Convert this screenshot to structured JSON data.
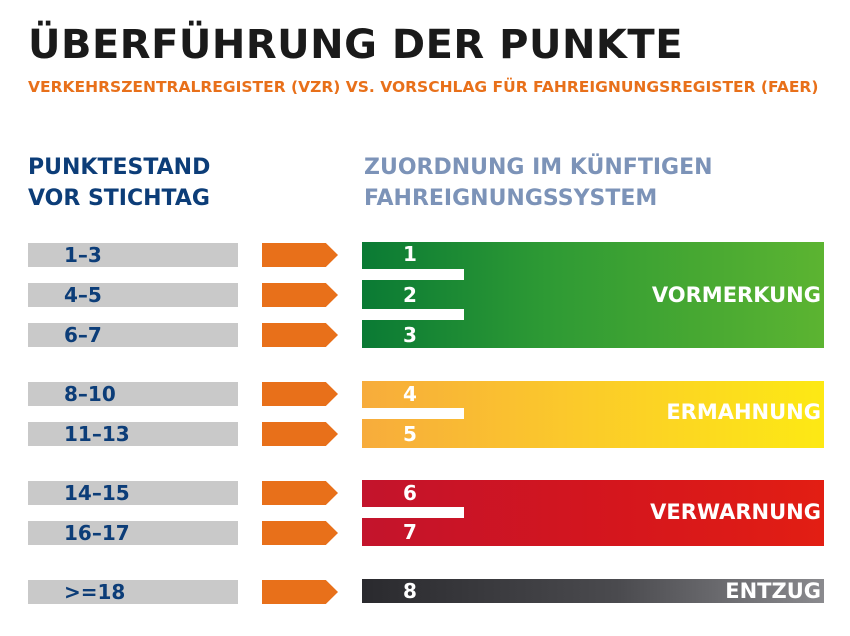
{
  "header": {
    "title": "ÜBERFÜHRUNG DER PUNKTE",
    "subtitle": "VERKEHRSZENTRALREGISTER (VZR) VS. VORSCHLAG FÜR FAHREIGNUNGSREGISTER (FAER)"
  },
  "columns": {
    "left_line1": "PUNKTESTAND",
    "left_line2": "VOR STICHTAG",
    "right_line1": "ZUORDNUNG IM KÜNFTIGEN",
    "right_line2": "FAHREIGNUNGSSYSTEM"
  },
  "rows": [
    {
      "range": "1–3",
      "points": "1"
    },
    {
      "range": "4–5",
      "points": "2"
    },
    {
      "range": "6–7",
      "points": "3"
    },
    {
      "range": "8–10",
      "points": "4"
    },
    {
      "range": "11–13",
      "points": "5"
    },
    {
      "range": "14–15",
      "points": "6"
    },
    {
      "range": "16–17",
      "points": "7"
    },
    {
      "range": ">=18",
      "points": "8"
    }
  ],
  "groups": {
    "vormerkung": "VORMERKUNG",
    "ermahnung": "ERMAHNUNG",
    "verwarnung": "VERWARNUNG",
    "entzug": "ENTZUG"
  },
  "colors": {
    "title": "#1a1a1a",
    "subtitle": "#e8701a",
    "left_header": "#0c3d78",
    "right_header": "#7c93b8",
    "arrow": "#e8701a",
    "source_box": "#c9c9c9",
    "vormerkung": "#2e9a34",
    "ermahnung": "#fbc92b",
    "verwarnung": "#d3151e",
    "entzug": "#3a3a3e"
  }
}
